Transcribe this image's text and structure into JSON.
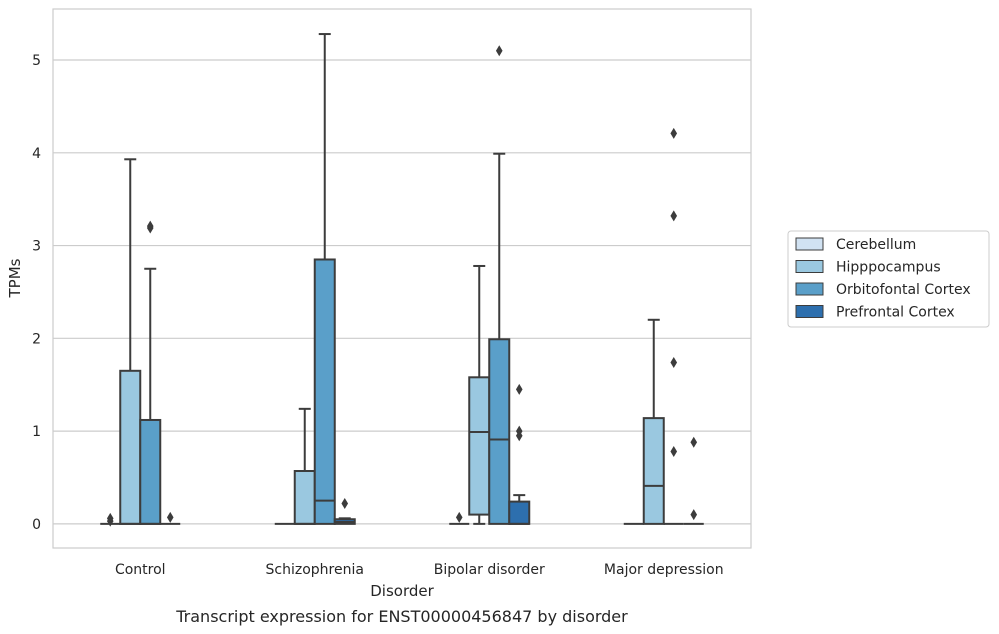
{
  "chart_data": {
    "type": "box",
    "title": "",
    "caption": "Transcript expression for ENST00000456847 by disorder",
    "xlabel": "Disorder",
    "ylabel": "TPMs",
    "ylim": [
      -0.26,
      5.55
    ],
    "yticks": [
      0,
      1,
      2,
      3,
      4,
      5
    ],
    "grid": true,
    "legend_position": "right",
    "categories": [
      "Control",
      "Schizophrenia",
      "Bipolar disorder",
      "Major depression"
    ],
    "series": [
      {
        "name": "Cerebellum",
        "color": "#d1e2f2",
        "boxes": [
          {
            "q1": 0,
            "median": 0,
            "q3": 0,
            "whisker_low": 0,
            "whisker_high": 0,
            "outliers": [
              0.03,
              0.06
            ]
          },
          {
            "q1": 0,
            "median": 0,
            "q3": 0,
            "whisker_low": 0,
            "whisker_high": 0,
            "outliers": []
          },
          {
            "q1": 0,
            "median": 0,
            "q3": 0,
            "whisker_low": 0,
            "whisker_high": 0,
            "outliers": [
              0.07
            ]
          },
          {
            "q1": 0,
            "median": 0,
            "q3": 0,
            "whisker_low": 0,
            "whisker_high": 0,
            "outliers": []
          }
        ]
      },
      {
        "name": "Hipppocampus",
        "color": "#9ac8e0",
        "boxes": [
          {
            "q1": 0,
            "median": 0,
            "q3": 1.65,
            "whisker_low": 0,
            "whisker_high": 3.93,
            "outliers": []
          },
          {
            "q1": 0,
            "median": 0,
            "q3": 0.57,
            "whisker_low": 0,
            "whisker_high": 1.24,
            "outliers": []
          },
          {
            "q1": 0.1,
            "median": 0.99,
            "q3": 1.58,
            "whisker_low": 0,
            "whisker_high": 2.78,
            "outliers": []
          },
          {
            "q1": 0,
            "median": 0.41,
            "q3": 1.14,
            "whisker_low": 0,
            "whisker_high": 2.2,
            "outliers": []
          }
        ]
      },
      {
        "name": "Orbitofontal Cortex",
        "color": "#5a9fc9",
        "boxes": [
          {
            "q1": 0,
            "median": 0,
            "q3": 1.12,
            "whisker_low": 0,
            "whisker_high": 2.75,
            "outliers": [
              3.19,
              3.21
            ]
          },
          {
            "q1": 0,
            "median": 0.25,
            "q3": 2.85,
            "whisker_low": 0,
            "whisker_high": 5.28,
            "outliers": []
          },
          {
            "q1": 0,
            "median": 0.91,
            "q3": 1.99,
            "whisker_low": 0,
            "whisker_high": 3.99,
            "outliers": [
              5.1
            ]
          },
          {
            "q1": 0,
            "median": 0,
            "q3": 0,
            "whisker_low": 0,
            "whisker_high": 0,
            "outliers": [
              4.21,
              3.32,
              1.74,
              0.78
            ]
          }
        ]
      },
      {
        "name": "Prefrontal Cortex",
        "color": "#2d6fae",
        "boxes": [
          {
            "q1": 0,
            "median": 0,
            "q3": 0,
            "whisker_low": 0,
            "whisker_high": 0,
            "outliers": [
              0.07
            ]
          },
          {
            "q1": 0,
            "median": 0.02,
            "q3": 0.05,
            "whisker_low": 0,
            "whisker_high": 0.06,
            "outliers": [
              0.22
            ]
          },
          {
            "q1": 0,
            "median": 0,
            "q3": 0.24,
            "whisker_low": 0,
            "whisker_high": 0.31,
            "outliers": [
              1.45,
              1.0,
              0.95
            ]
          },
          {
            "q1": 0,
            "median": 0,
            "q3": 0,
            "whisker_low": 0,
            "whisker_high": 0,
            "outliers": [
              0.88,
              0.1
            ]
          }
        ]
      }
    ]
  }
}
